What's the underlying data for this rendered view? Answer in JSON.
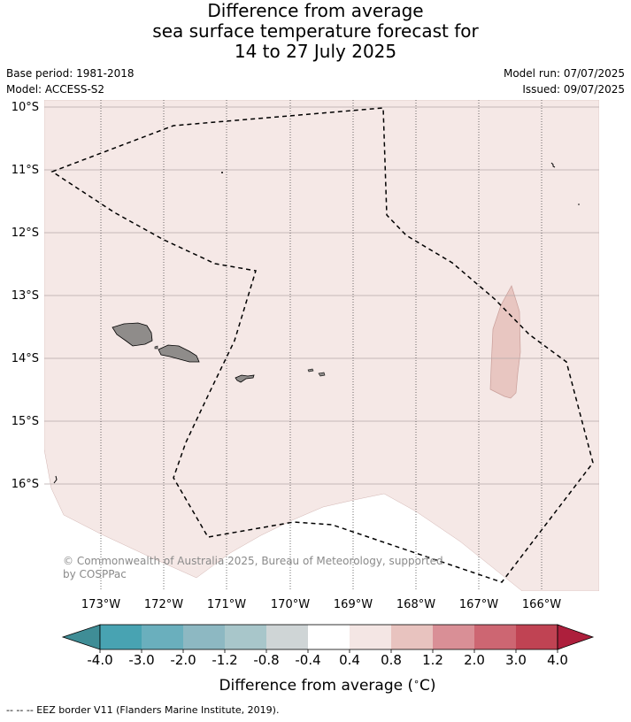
{
  "title": {
    "line1": "Difference from average",
    "line2": "sea surface temperature forecast for",
    "line3": "14 to 27 July 2025"
  },
  "meta": {
    "base_period": "Base period: 1981-2018",
    "model": "Model: ACCESS-S2",
    "model_run": "Model run: 07/07/2025",
    "issued": "Issued: 09/07/2025"
  },
  "map": {
    "lat_labels": [
      "10°S",
      "11°S",
      "12°S",
      "13°S",
      "14°S",
      "15°S",
      "16°S"
    ],
    "lon_labels": [
      "173°W",
      "172°W",
      "171°W",
      "170°W",
      "169°W",
      "168°W",
      "167°W",
      "166°W"
    ],
    "copyright_line1": "© Commonwealth of Australia 2025, Bureau of Meteorology, supported",
    "copyright_line2": "by COSPPac",
    "colors": {
      "background_anomaly": "#f5e8e6",
      "warm_patch": "#e8c6c1",
      "land": "#8f8c8a",
      "grid": "#b4a9a8"
    }
  },
  "colorbar": {
    "tick_labels": [
      "-4.0",
      "-3.0",
      "-2.0",
      "-1.2",
      "-0.8",
      "-0.4",
      "0.4",
      "0.8",
      "1.2",
      "2.0",
      "3.0",
      "4.0"
    ],
    "colors": [
      "#3f8d96",
      "#48a3b2",
      "#6aafbd",
      "#8db8c2",
      "#a8c6ca",
      "#cfd5d6",
      "#ffffff",
      "#f4e6e4",
      "#e8c3bf",
      "#d98f96",
      "#cd6672",
      "#c04353",
      "#ad1f3c"
    ],
    "label": "Difference from average ($^\\circ$C)"
  },
  "footer": {
    "legend_text": "--  --  -- EEZ border V11 (Flanders Marine Institute, 2019)."
  }
}
